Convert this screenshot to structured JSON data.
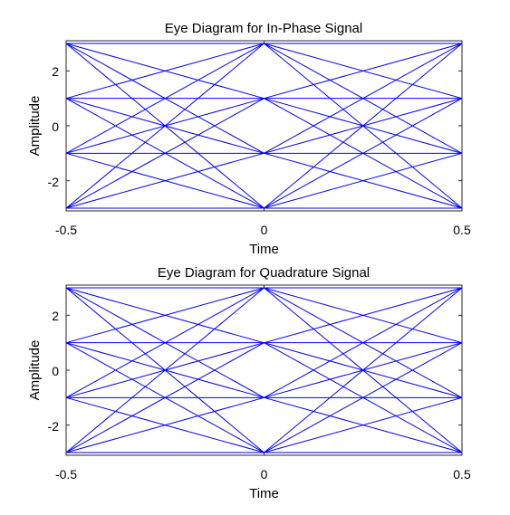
{
  "colors": {
    "background": "#ffffff",
    "trace": "#0000ff",
    "axes": "#262626"
  },
  "chart_data": [
    {
      "type": "line",
      "title": "Eye Diagram for In-Phase Signal",
      "xlabel": "Time",
      "ylabel": "Amplitude",
      "xlim": [
        -0.5,
        0.5
      ],
      "ylim": [
        -3.1,
        3.1
      ],
      "xticks": [
        -0.5,
        0,
        0.5
      ],
      "xtick_labels": [
        "-0.5",
        "0",
        "0.5"
      ],
      "yticks": [
        2,
        0,
        -2
      ],
      "ytick_labels": [
        "2",
        "0",
        "-2"
      ],
      "grid": false,
      "levels": [
        -3,
        -1,
        1,
        3
      ],
      "x": [
        -0.5,
        0,
        0.5
      ]
    },
    {
      "type": "line",
      "title": "Eye Diagram for Quadrature Signal",
      "xlabel": "Time",
      "ylabel": "Amplitude",
      "xlim": [
        -0.5,
        0.5
      ],
      "ylim": [
        -3.1,
        3.1
      ],
      "xticks": [
        -0.5,
        0,
        0.5
      ],
      "xtick_labels": [
        "-0.5",
        "0",
        "0.5"
      ],
      "yticks": [
        2,
        0,
        -2
      ],
      "ytick_labels": [
        "2",
        "0",
        "-2"
      ],
      "grid": false,
      "levels": [
        -3,
        -1,
        1,
        3
      ],
      "x": [
        -0.5,
        0,
        0.5
      ]
    }
  ]
}
